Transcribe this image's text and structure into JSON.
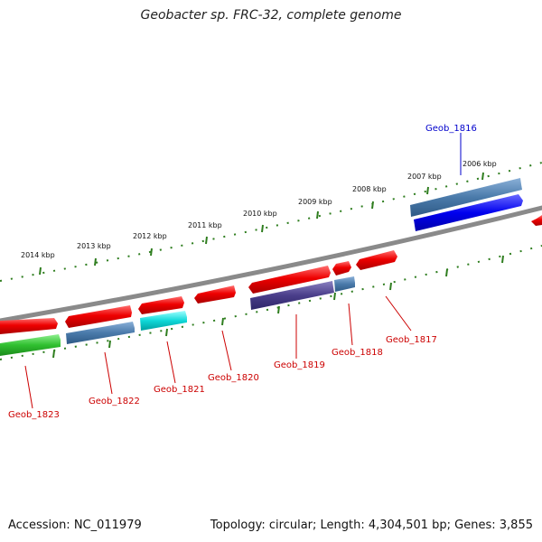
{
  "title": "Geobacter sp. FRC-32, complete genome",
  "footer": {
    "accession": "Accession: NC_011979",
    "topology": "Topology: circular; Length: 4,304,501 bp; Genes: 3,855"
  },
  "colors": {
    "backbone": "#8a8a8a",
    "ticks": "#2e7d1e",
    "label_red": "#cc0000",
    "label_blue": "#0000cc"
  },
  "kbp_labels": [
    "2006 kbp",
    "2007 kbp",
    "2008 kbp",
    "2009 kbp",
    "2010 kbp",
    "2011 kbp",
    "2012 kbp",
    "2013 kbp",
    "2014 kbp"
  ],
  "gene_labels": [
    {
      "name": "Geob_1816",
      "color": "blue"
    },
    {
      "name": "Geob_1817",
      "color": "red"
    },
    {
      "name": "Geob_1818",
      "color": "red"
    },
    {
      "name": "Geob_1819",
      "color": "red"
    },
    {
      "name": "Geob_1820",
      "color": "red"
    },
    {
      "name": "Geob_1821",
      "color": "red"
    },
    {
      "name": "Geob_1822",
      "color": "red"
    },
    {
      "name": "Geob_1823",
      "color": "red"
    }
  ]
}
